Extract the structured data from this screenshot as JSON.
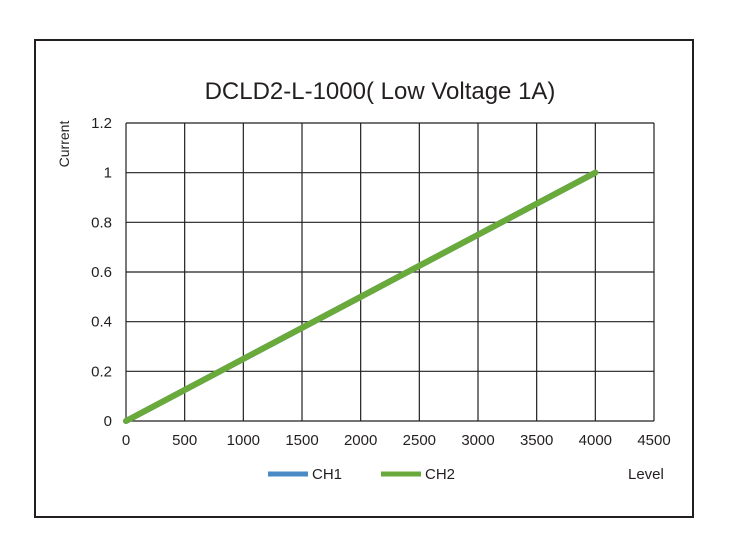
{
  "chart_data": {
    "type": "line",
    "title": "DCLD2-L-1000( Low Voltage 1A)",
    "xlabel": "Level",
    "ylabel": "Current",
    "xlim": [
      0,
      4500
    ],
    "ylim": [
      0,
      1.2
    ],
    "x_ticks": [
      "0",
      "500",
      "1000",
      "1500",
      "2000",
      "2500",
      "3000",
      "3500",
      "4000",
      "4500"
    ],
    "y_ticks": [
      "0",
      "0.2",
      "0.4",
      "0.6",
      "0.8",
      "1",
      "1.2"
    ],
    "grid": true,
    "legend_position": "bottom",
    "series": [
      {
        "name": "CH1",
        "color": "#4a8bc6",
        "x": [
          0,
          4000
        ],
        "y": [
          0,
          1
        ]
      },
      {
        "name": "CH2",
        "color": "#6aaa3a",
        "x": [
          0,
          4000
        ],
        "y": [
          0,
          1
        ]
      }
    ]
  }
}
